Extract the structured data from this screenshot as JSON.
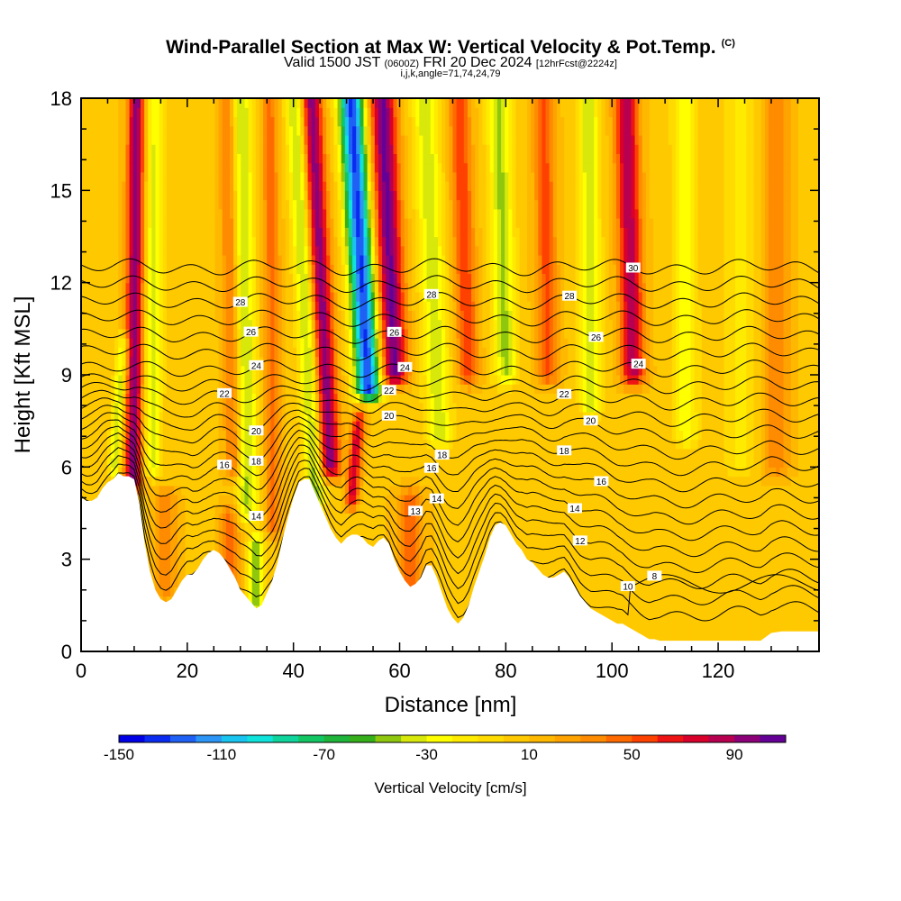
{
  "header": {
    "title": "Wind-Parallel Section at Max W: Vertical Velocity & Pot.Temp.",
    "title_mark": "(C)",
    "valid_pre": "Valid 1500 JST",
    "valid_utc": "(0600Z)",
    "valid_date": "FRI 20 Dec 2024",
    "valid_fcst": "[12hrFcst@2224z]",
    "indices": "i,j,k,angle=71,74,24,79"
  },
  "chart_data": {
    "type": "heatmap",
    "xlabel": "Distance [nm]",
    "ylabel": "Height [Kft MSL]",
    "xlim": [
      0,
      139
    ],
    "ylim": [
      0,
      18
    ],
    "xticks": [
      0,
      20,
      40,
      60,
      80,
      100,
      120
    ],
    "yticks": [
      0,
      3,
      6,
      9,
      12,
      15,
      18
    ],
    "background_w": 8,
    "bands": [
      {
        "x": 10,
        "w": 90,
        "width": 1.6,
        "zmin": 5.5,
        "zmax": 18,
        "tilt": 0.05
      },
      {
        "x": 13.5,
        "w": -40,
        "width": 1.8,
        "zmin": 6,
        "zmax": 18,
        "tilt": 0.05
      },
      {
        "x": 7.5,
        "w": -45,
        "width": 1.2,
        "zmin": 6,
        "zmax": 10,
        "tilt": 0.4
      },
      {
        "x": 31,
        "w": -50,
        "width": 2.0,
        "zmin": 4.5,
        "zmax": 18,
        "tilt": -0.1
      },
      {
        "x": 28.5,
        "w": 40,
        "width": 1.6,
        "zmin": 6,
        "zmax": 18,
        "tilt": -0.1
      },
      {
        "x": 36,
        "w": 35,
        "width": 1.6,
        "zmin": 4,
        "zmax": 18,
        "tilt": -0.05
      },
      {
        "x": 43,
        "w": -55,
        "width": 1.8,
        "zmin": 5,
        "zmax": 18,
        "tilt": -0.3
      },
      {
        "x": 46,
        "w": 90,
        "width": 2.0,
        "zmin": 6,
        "zmax": 18,
        "tilt": -0.3
      },
      {
        "x": 54,
        "w": -140,
        "width": 2.4,
        "zmin": 8.5,
        "zmax": 18,
        "tilt": -0.35
      },
      {
        "x": 53,
        "w": 70,
        "width": 1.2,
        "zmin": 5,
        "zmax": 7.5,
        "tilt": 0.5
      },
      {
        "x": 59,
        "w": 95,
        "width": 2.5,
        "zmin": 9,
        "zmax": 18,
        "tilt": -0.25
      },
      {
        "x": 67,
        "w": -45,
        "width": 2.4,
        "zmin": 7,
        "zmax": 18,
        "tilt": -0.25
      },
      {
        "x": 73,
        "w": 50,
        "width": 2.0,
        "zmin": 9,
        "zmax": 18,
        "tilt": -0.2
      },
      {
        "x": 80,
        "w": -50,
        "width": 2.2,
        "zmin": 9,
        "zmax": 18,
        "tilt": -0.15
      },
      {
        "x": 88,
        "w": 45,
        "width": 2.0,
        "zmin": 9,
        "zmax": 18,
        "tilt": -0.1
      },
      {
        "x": 96,
        "w": -45,
        "width": 2.0,
        "zmin": 8,
        "zmax": 18,
        "tilt": -0.05
      },
      {
        "x": 104,
        "w": 80,
        "width": 2.2,
        "zmin": 9,
        "zmax": 18,
        "tilt": -0.15
      },
      {
        "x": 114,
        "w": -35,
        "width": 2.2,
        "zmin": 7,
        "zmax": 18,
        "tilt": -0.05
      },
      {
        "x": 124,
        "w": -20,
        "width": 3.0,
        "zmin": 6,
        "zmax": 18,
        "tilt": 0
      },
      {
        "x": 131,
        "w": 30,
        "width": 2.5,
        "zmin": 6,
        "zmax": 18,
        "tilt": 0
      },
      {
        "x": 33,
        "w": -55,
        "width": 1.5,
        "zmin": 1.5,
        "zmax": 3.5,
        "tilt": 0
      },
      {
        "x": 28,
        "w": 35,
        "width": 1.8,
        "zmin": 1.5,
        "zmax": 4.5,
        "tilt": 0
      },
      {
        "x": 62,
        "w": 40,
        "width": 2.5,
        "zmin": 2,
        "zmax": 5,
        "tilt": 0
      },
      {
        "x": 16,
        "w": 30,
        "width": 2.0,
        "zmin": 2,
        "zmax": 5,
        "tilt": 0
      }
    ],
    "terrain": [
      [
        0,
        5.0
      ],
      [
        1,
        4.9
      ],
      [
        2,
        4.9
      ],
      [
        3,
        5.0
      ],
      [
        4,
        5.3
      ],
      [
        5,
        5.5
      ],
      [
        6,
        5.6
      ],
      [
        7,
        5.8
      ],
      [
        8,
        5.7
      ],
      [
        9,
        5.7
      ],
      [
        10,
        5.6
      ],
      [
        11,
        4.8
      ],
      [
        12,
        3.5
      ],
      [
        13,
        2.6
      ],
      [
        14,
        2.0
      ],
      [
        15,
        1.7
      ],
      [
        16,
        1.6
      ],
      [
        17,
        1.7
      ],
      [
        18,
        2.0
      ],
      [
        19,
        2.3
      ],
      [
        20,
        2.5
      ],
      [
        21,
        2.5
      ],
      [
        22,
        2.7
      ],
      [
        23,
        3.0
      ],
      [
        24,
        3.2
      ],
      [
        25,
        3.3
      ],
      [
        26,
        3.2
      ],
      [
        27,
        3.0
      ],
      [
        28,
        2.7
      ],
      [
        29,
        2.4
      ],
      [
        30,
        2.0
      ],
      [
        31,
        1.8
      ],
      [
        32,
        1.6
      ],
      [
        33,
        1.4
      ],
      [
        34,
        1.5
      ],
      [
        35,
        1.9
      ],
      [
        36,
        2.3
      ],
      [
        37,
        2.9
      ],
      [
        38,
        3.7
      ],
      [
        39,
        4.4
      ],
      [
        40,
        5.0
      ],
      [
        41,
        5.5
      ],
      [
        42,
        5.6
      ],
      [
        43,
        5.6
      ],
      [
        44,
        5.2
      ],
      [
        45,
        4.8
      ],
      [
        46,
        4.4
      ],
      [
        47,
        4.0
      ],
      [
        48,
        3.7
      ],
      [
        49,
        3.5
      ],
      [
        50,
        3.7
      ],
      [
        51,
        3.8
      ],
      [
        52,
        3.8
      ],
      [
        53,
        3.7
      ],
      [
        54,
        3.5
      ],
      [
        55,
        3.4
      ],
      [
        56,
        3.6
      ],
      [
        57,
        3.7
      ],
      [
        58,
        3.5
      ],
      [
        59,
        3.0
      ],
      [
        60,
        2.6
      ],
      [
        61,
        2.3
      ],
      [
        62,
        2.1
      ],
      [
        63,
        2.2
      ],
      [
        64,
        2.4
      ],
      [
        65,
        2.8
      ],
      [
        66,
        2.8
      ],
      [
        67,
        2.4
      ],
      [
        68,
        1.9
      ],
      [
        69,
        1.4
      ],
      [
        70,
        1.1
      ],
      [
        71,
        0.9
      ],
      [
        72,
        1.1
      ],
      [
        73,
        1.5
      ],
      [
        74,
        2.1
      ],
      [
        75,
        2.6
      ],
      [
        76,
        3.1
      ],
      [
        77,
        3.7
      ],
      [
        78,
        4.1
      ],
      [
        79,
        4.2
      ],
      [
        80,
        4.1
      ],
      [
        81,
        3.8
      ],
      [
        82,
        3.5
      ],
      [
        83,
        3.3
      ],
      [
        84,
        3.0
      ],
      [
        85,
        2.9
      ],
      [
        86,
        2.7
      ],
      [
        87,
        2.5
      ],
      [
        88,
        2.4
      ],
      [
        89,
        2.4
      ],
      [
        90,
        2.5
      ],
      [
        91,
        2.6
      ],
      [
        92,
        2.4
      ],
      [
        93,
        2.1
      ],
      [
        94,
        1.8
      ],
      [
        95,
        1.6
      ],
      [
        96,
        1.4
      ],
      [
        97,
        1.3
      ],
      [
        98,
        1.2
      ],
      [
        99,
        1.1
      ],
      [
        100,
        1.0
      ],
      [
        101,
        0.9
      ],
      [
        102,
        0.9
      ],
      [
        103,
        0.8
      ],
      [
        104,
        0.7
      ],
      [
        105,
        0.6
      ],
      [
        106,
        0.5
      ],
      [
        107,
        0.4
      ],
      [
        108,
        0.4
      ],
      [
        109,
        0.35
      ],
      [
        110,
        0.35
      ],
      [
        112,
        0.35
      ],
      [
        114,
        0.35
      ],
      [
        116,
        0.35
      ],
      [
        118,
        0.35
      ],
      [
        120,
        0.35
      ],
      [
        122,
        0.35
      ],
      [
        124,
        0.35
      ],
      [
        126,
        0.35
      ],
      [
        128,
        0.35
      ],
      [
        130,
        0.6
      ],
      [
        132,
        0.65
      ],
      [
        134,
        0.65
      ],
      [
        136,
        0.65
      ],
      [
        139,
        0.65
      ]
    ],
    "contour_levels": [
      8,
      9,
      10,
      11,
      12,
      13,
      14,
      15,
      16,
      17,
      18,
      19,
      20,
      21,
      22,
      23,
      24,
      25,
      26,
      27,
      28,
      29,
      30
    ],
    "contour_labels": [
      {
        "x": 104,
        "level": 30,
        "text": "30"
      },
      {
        "x": 30,
        "level": 28,
        "text": "28"
      },
      {
        "x": 66,
        "level": 28,
        "text": "28"
      },
      {
        "x": 92,
        "level": 28,
        "text": "28"
      },
      {
        "x": 32,
        "level": 26,
        "text": "26"
      },
      {
        "x": 59,
        "level": 26,
        "text": "26"
      },
      {
        "x": 97,
        "level": 26,
        "text": "26"
      },
      {
        "x": 33,
        "level": 24,
        "text": "24"
      },
      {
        "x": 61,
        "level": 24,
        "text": "24"
      },
      {
        "x": 105,
        "level": 24,
        "text": "24"
      },
      {
        "x": 27,
        "level": 22,
        "text": "22"
      },
      {
        "x": 58,
        "level": 22,
        "text": "22"
      },
      {
        "x": 91,
        "level": 22,
        "text": "22"
      },
      {
        "x": 33,
        "level": 20,
        "text": "20"
      },
      {
        "x": 58,
        "level": 20,
        "text": "20"
      },
      {
        "x": 96,
        "level": 20,
        "text": "20"
      },
      {
        "x": 33,
        "level": 18,
        "text": "18"
      },
      {
        "x": 68,
        "level": 18,
        "text": "18"
      },
      {
        "x": 91,
        "level": 18,
        "text": "18"
      },
      {
        "x": 27,
        "level": 16,
        "text": "16"
      },
      {
        "x": 66,
        "level": 16,
        "text": "16"
      },
      {
        "x": 98,
        "level": 16,
        "text": "16"
      },
      {
        "x": 33,
        "level": 14,
        "text": "14"
      },
      {
        "x": 67,
        "level": 14,
        "text": "14"
      },
      {
        "x": 93,
        "level": 14,
        "text": "14"
      },
      {
        "x": 63,
        "level": 13,
        "text": "13"
      },
      {
        "x": 94,
        "level": 12,
        "text": "12"
      },
      {
        "x": 103,
        "level": 10,
        "text": "10"
      },
      {
        "x": 108,
        "level": 8,
        "text": "8"
      }
    ],
    "colorbar": {
      "label": "Vertical Velocity [cm/s]",
      "min": -150,
      "max": 110,
      "step": 10,
      "tick_values": [
        -150,
        -110,
        -70,
        -30,
        10,
        50,
        90
      ],
      "tick_labels": [
        "-150",
        "-110",
        "-70",
        "-30",
        "10",
        "50",
        "90"
      ],
      "colors": [
        "#0000e6",
        "#0a2bf0",
        "#1f60f5",
        "#2c95f5",
        "#19c4f0",
        "#0fe3db",
        "#0fd49b",
        "#12c763",
        "#1fb43a",
        "#36b01a",
        "#8fc70f",
        "#d7e80a",
        "#ffff00",
        "#ffeb00",
        "#ffdb00",
        "#ffc900",
        "#ffb800",
        "#ffa300",
        "#ff8c00",
        "#ff6a00",
        "#ff4100",
        "#ef1414",
        "#d9002b",
        "#b80050",
        "#8c0078",
        "#640096"
      ]
    }
  }
}
